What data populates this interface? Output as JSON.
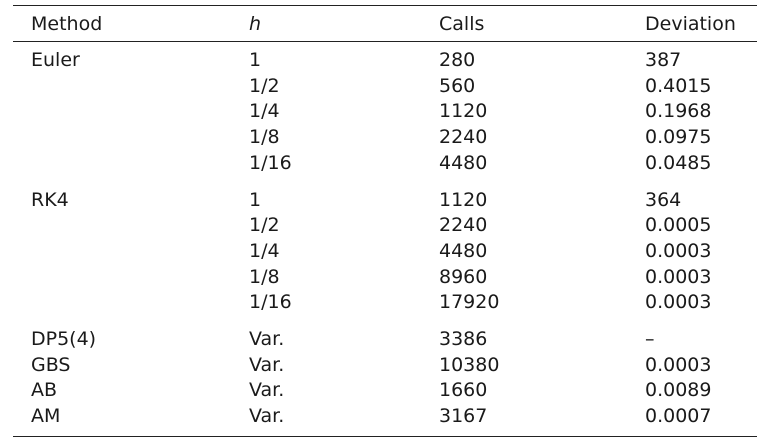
{
  "table": {
    "headers": [
      "Method",
      "h",
      "Calls",
      "Deviation"
    ],
    "groups": [
      {
        "rows": [
          [
            "Euler",
            "1",
            "280",
            "387"
          ],
          [
            "",
            "1/2",
            "560",
            "0.4015"
          ],
          [
            "",
            "1/4",
            "1120",
            "0.1968"
          ],
          [
            "",
            "1/8",
            "2240",
            "0.0975"
          ],
          [
            "",
            "1/16",
            "4480",
            "0.0485"
          ]
        ]
      },
      {
        "rows": [
          [
            "RK4",
            "1",
            "1120",
            "364"
          ],
          [
            "",
            "1/2",
            "2240",
            "0.0005"
          ],
          [
            "",
            "1/4",
            "4480",
            "0.0003"
          ],
          [
            "",
            "1/8",
            "8960",
            "0.0003"
          ],
          [
            "",
            "1/16",
            "17920",
            "0.0003"
          ]
        ]
      },
      {
        "rows": [
          [
            "DP5(4)",
            "Var.",
            "3386",
            "–"
          ],
          [
            "GBS",
            "Var.",
            "10380",
            "0.0003"
          ],
          [
            "AB",
            "Var.",
            "1660",
            "0.0089"
          ],
          [
            "AM",
            "Var.",
            "3167",
            "0.0007"
          ]
        ]
      }
    ]
  }
}
